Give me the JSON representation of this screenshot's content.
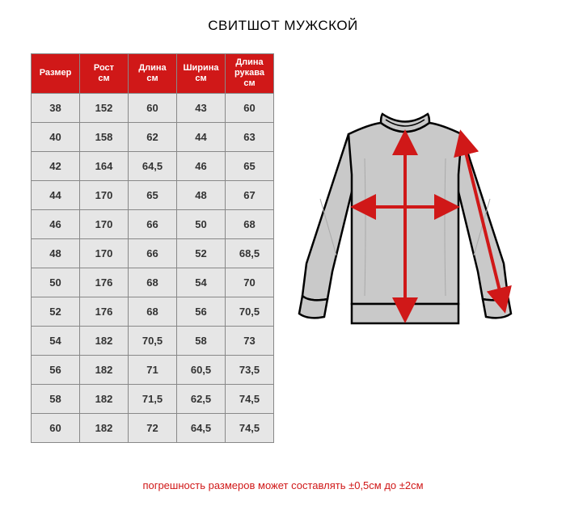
{
  "title": "СВИТШОТ МУЖСКОЙ",
  "table": {
    "type": "table",
    "header_bg": "#d01818",
    "header_fg": "#ffffff",
    "cell_bg": "#e6e6e6",
    "cell_fg": "#333333",
    "border_color": "#888888",
    "columns": [
      {
        "line1": "Размер",
        "line2": ""
      },
      {
        "line1": "Рост",
        "line2": "см"
      },
      {
        "line1": "Длина",
        "line2": "см"
      },
      {
        "line1": "Ширина",
        "line2": "см"
      },
      {
        "line1": "Длина",
        "line2": "рукава",
        "line3": "см"
      }
    ],
    "rows": [
      [
        "38",
        "152",
        "60",
        "43",
        "60"
      ],
      [
        "40",
        "158",
        "62",
        "44",
        "63"
      ],
      [
        "42",
        "164",
        "64,5",
        "46",
        "65"
      ],
      [
        "44",
        "170",
        "65",
        "48",
        "67"
      ],
      [
        "46",
        "170",
        "66",
        "50",
        "68"
      ],
      [
        "48",
        "170",
        "66",
        "52",
        "68,5"
      ],
      [
        "50",
        "176",
        "68",
        "54",
        "70"
      ],
      [
        "52",
        "176",
        "68",
        "56",
        "70,5"
      ],
      [
        "54",
        "182",
        "70,5",
        "58",
        "73"
      ],
      [
        "56",
        "182",
        "71",
        "60,5",
        "73,5"
      ],
      [
        "58",
        "182",
        "71,5",
        "62,5",
        "74,5"
      ],
      [
        "60",
        "182",
        "72",
        "64,5",
        "74,5"
      ]
    ]
  },
  "diagram": {
    "type": "infographic",
    "garment_fill": "#c9c9c9",
    "garment_stroke": "#000000",
    "arrow_color": "#d01818",
    "arrow_width": 4,
    "background_color": "#ffffff"
  },
  "footnote": "погрешность размеров может составлять ±0,5см до ±2см"
}
